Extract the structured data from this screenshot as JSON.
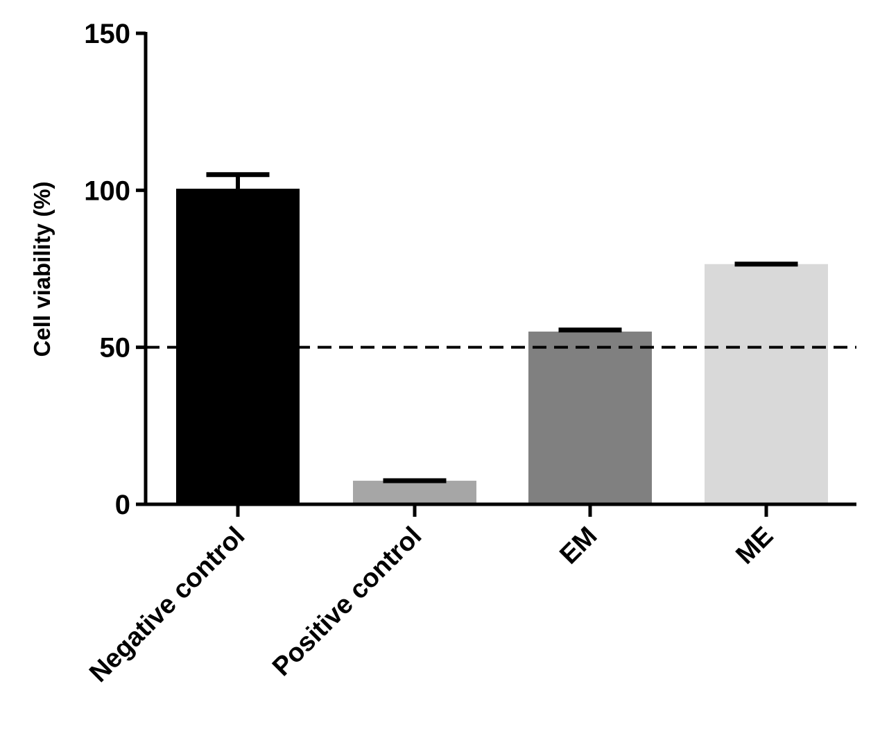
{
  "chart_data": {
    "type": "bar",
    "title": "",
    "xlabel": "",
    "ylabel": "Cell viability (%)",
    "ylim": [
      0,
      150
    ],
    "yticks": [
      0,
      50,
      100,
      150
    ],
    "categories": [
      "Negative control",
      "Positive control",
      "EM",
      "ME"
    ],
    "values": [
      100.5,
      7.5,
      55,
      76.5
    ],
    "error_upper": [
      105,
      7.5,
      55.5,
      76.5
    ],
    "bar_colors": [
      "#000000",
      "#a6a6a6",
      "#808080",
      "#d9d9d9"
    ],
    "reference_line": {
      "y": 50,
      "style": "dashed",
      "color": "#000000"
    },
    "grid": false,
    "legend": "none"
  }
}
